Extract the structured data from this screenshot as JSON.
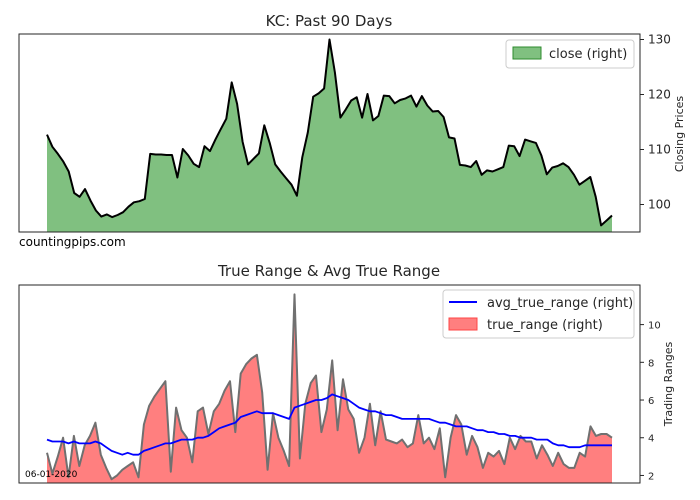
{
  "chart_data": [
    {
      "type": "area",
      "title": "KC: Past 90 Days",
      "ylabel": "Closing Prices",
      "ylim": [
        95,
        131
      ],
      "yticks": [
        100,
        110,
        120,
        130
      ],
      "legend": {
        "position": "top-right",
        "label": "close (right)"
      },
      "annotation": "countingpips.com",
      "colors": {
        "fill": "#80c080",
        "line": "#000000",
        "legend_edge": "#2e8b2e"
      },
      "series": [
        {
          "name": "close",
          "values": [
            112.7,
            110.5,
            109.2,
            107.8,
            106.0,
            102.1,
            101.4,
            102.8,
            100.7,
            98.9,
            97.8,
            98.2,
            97.7,
            98.1,
            98.6,
            99.6,
            100.4,
            100.6,
            101.0,
            109.2,
            109.1,
            109.1,
            109.0,
            109.0,
            104.9,
            110.1,
            108.9,
            107.4,
            106.8,
            110.6,
            109.7,
            111.8,
            113.7,
            115.6,
            122.2,
            118.3,
            111.4,
            107.3,
            108.3,
            109.3,
            114.4,
            111.2,
            107.3,
            106.0,
            104.8,
            103.6,
            101.6,
            108.6,
            113.1,
            119.6,
            120.2,
            121.1,
            130.0,
            124.0,
            115.8,
            117.3,
            118.9,
            119.5,
            115.8,
            120.1,
            115.3,
            116.1,
            119.8,
            119.7,
            118.4,
            119.0,
            119.3,
            119.8,
            117.8,
            119.7,
            118.0,
            116.9,
            117.0,
            115.9,
            112.2,
            112.0,
            107.2,
            107.1,
            106.8,
            107.9,
            105.4,
            106.2,
            106.0,
            106.4,
            106.8,
            110.7,
            110.6,
            108.8,
            111.8,
            111.5,
            111.2,
            108.9,
            105.5,
            106.7,
            107.0,
            107.5,
            106.8,
            105.4,
            103.6,
            104.3,
            105.0,
            101.4,
            96.2,
            97.1,
            98.0
          ]
        }
      ]
    },
    {
      "type": "area",
      "title": "True Range & Avg True Range",
      "ylabel": "Trading Ranges",
      "ylim": [
        1.6,
        12.1
      ],
      "yticks": [
        2,
        4,
        6,
        8,
        10
      ],
      "legend": {
        "position": "top-right",
        "labels": [
          "avg_true_range (right)",
          "true_range (right)"
        ]
      },
      "annotation": "06-01-2020",
      "colors": {
        "fill": "#ff7f7f",
        "line": "#707070",
        "avg_line": "#0000ff",
        "legend_edge": "#ff4444"
      },
      "series": [
        {
          "name": "true_range",
          "values": [
            3.2,
            2.1,
            3.0,
            4.0,
            1.9,
            4.1,
            2.5,
            3.6,
            4.1,
            4.8,
            3.1,
            2.4,
            1.8,
            2.0,
            2.3,
            2.5,
            2.7,
            1.9,
            4.7,
            5.7,
            6.2,
            6.6,
            7.0,
            2.2,
            5.6,
            4.4,
            4.0,
            2.7,
            5.4,
            5.6,
            4.2,
            5.4,
            5.8,
            6.5,
            7.0,
            4.3,
            7.4,
            7.9,
            8.2,
            8.4,
            6.4,
            2.3,
            5.3,
            4.0,
            3.3,
            2.5,
            11.6,
            2.9,
            5.8,
            6.9,
            7.3,
            4.3,
            5.5,
            8.1,
            4.4,
            7.1,
            5.5,
            5.0,
            3.2,
            4.0,
            5.8,
            3.6,
            5.4,
            3.9,
            3.8,
            3.7,
            3.9,
            3.5,
            3.7,
            5.2,
            3.7,
            4.0,
            3.4,
            4.5,
            1.9,
            4.0,
            5.2,
            4.7,
            3.1,
            4.1,
            3.5,
            2.4,
            3.2,
            3.0,
            3.3,
            2.6,
            4.0,
            3.4,
            4.1,
            3.8,
            3.8,
            2.9,
            3.6,
            3.1,
            2.5,
            3.2,
            2.6,
            2.4,
            2.4,
            3.2,
            3.0,
            4.6,
            4.1,
            4.2,
            4.2,
            4.0
          ]
        },
        {
          "name": "avg_true_range",
          "values": [
            3.9,
            3.8,
            3.8,
            3.8,
            3.7,
            3.8,
            3.7,
            3.7,
            3.7,
            3.8,
            3.7,
            3.5,
            3.3,
            3.2,
            3.1,
            3.2,
            3.1,
            3.1,
            3.3,
            3.4,
            3.5,
            3.6,
            3.7,
            3.7,
            3.8,
            3.9,
            3.9,
            3.9,
            4.0,
            4.0,
            4.1,
            4.3,
            4.5,
            4.6,
            4.7,
            4.8,
            5.1,
            5.2,
            5.3,
            5.4,
            5.3,
            5.3,
            5.3,
            5.2,
            5.1,
            5.0,
            5.6,
            5.7,
            5.8,
            5.9,
            6.0,
            6.0,
            6.1,
            6.3,
            6.2,
            6.1,
            6.0,
            5.8,
            5.6,
            5.5,
            5.4,
            5.4,
            5.3,
            5.2,
            5.2,
            5.1,
            5.0,
            5.0,
            5.0,
            5.0,
            5.0,
            5.0,
            4.9,
            4.8,
            4.8,
            4.7,
            4.6,
            4.6,
            4.6,
            4.5,
            4.4,
            4.4,
            4.3,
            4.3,
            4.2,
            4.2,
            4.1,
            4.1,
            4.0,
            4.0,
            4.0,
            3.9,
            3.9,
            3.9,
            3.7,
            3.6,
            3.6,
            3.5,
            3.5,
            3.5,
            3.6,
            3.6,
            3.6,
            3.6,
            3.6,
            3.6
          ]
        }
      ]
    }
  ]
}
